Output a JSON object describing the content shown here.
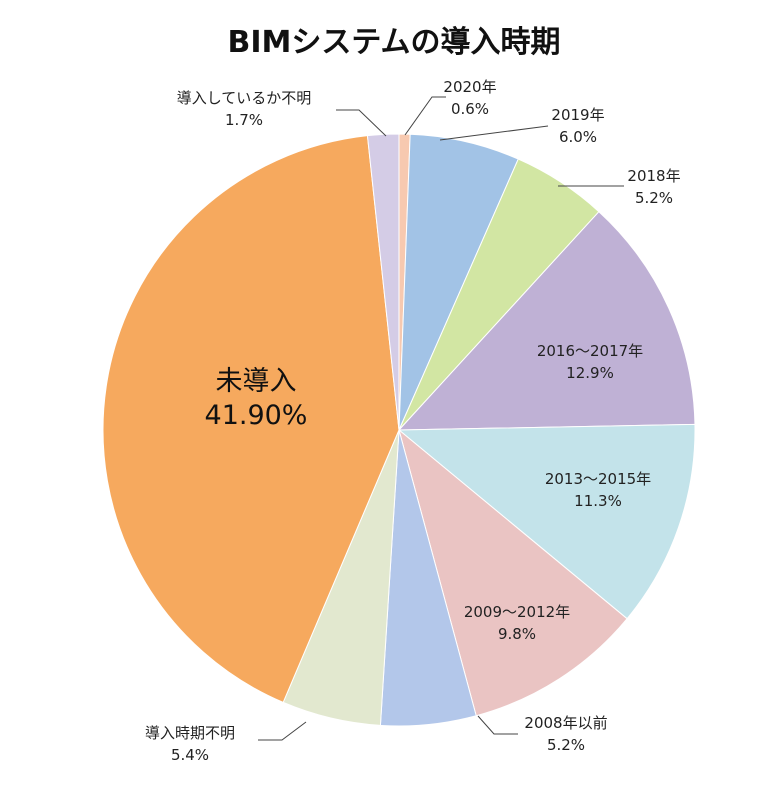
{
  "chart_data": {
    "type": "pie",
    "title": "BIMシステムの導入時期",
    "slices": [
      {
        "label": "2020年",
        "pct_label": "0.6%",
        "value": 0.6,
        "color": "#F7C9B0"
      },
      {
        "label": "2019年",
        "pct_label": "6.0%",
        "value": 6.0,
        "color": "#A2C3E6"
      },
      {
        "label": "2018年",
        "pct_label": "5.2%",
        "value": 5.2,
        "color": "#D2E6A3"
      },
      {
        "label": "2016～2017年",
        "pct_label": "12.9%",
        "value": 12.9,
        "color": "#BFB1D5"
      },
      {
        "label": "2013～2015年",
        "pct_label": "11.3%",
        "value": 11.3,
        "color": "#C3E3EA"
      },
      {
        "label": "2009～2012年",
        "pct_label": "9.8%",
        "value": 9.8,
        "color": "#EAC4C3"
      },
      {
        "label": "2008年以前",
        "pct_label": "5.2%",
        "value": 5.2,
        "color": "#B3C7EA"
      },
      {
        "label": "導入時期不明",
        "pct_label": "5.4%",
        "value": 5.4,
        "color": "#E2E8CF"
      },
      {
        "label": "未導入",
        "pct_label": "41.90%",
        "value": 41.9,
        "color": "#F6A95E"
      },
      {
        "label": "導入しているか不明",
        "pct_label": "1.7%",
        "value": 1.7,
        "color": "#D4CCE6"
      }
    ],
    "legend": "none"
  }
}
